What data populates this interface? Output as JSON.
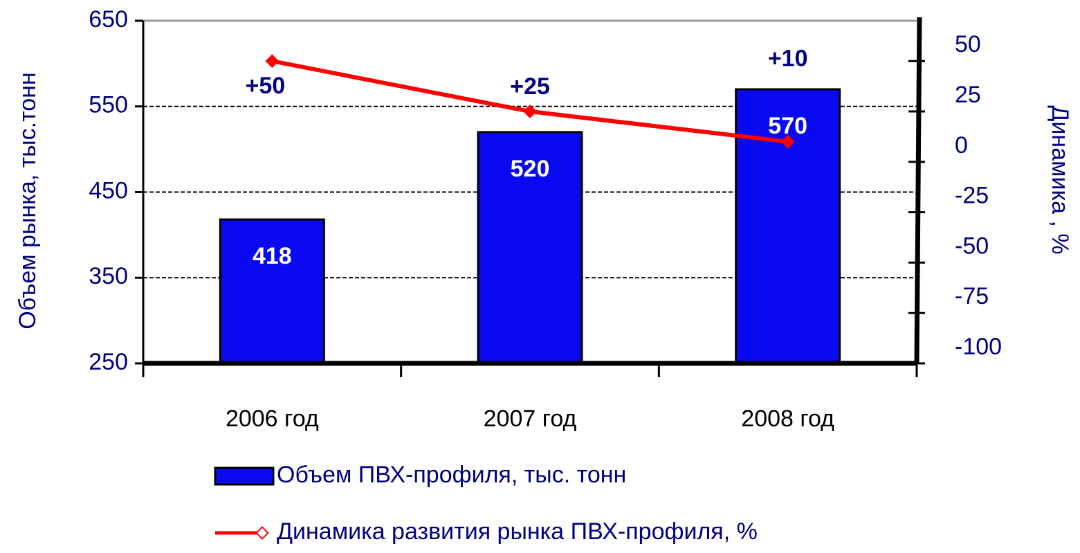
{
  "chart_data": {
    "type": "bar",
    "categories": [
      "2006 год",
      "2007 год",
      "2008 год"
    ],
    "ylabel": "Объем рынка, тыс.тонн",
    "y2label": "Динамика , %",
    "ylim": [
      250,
      650
    ],
    "yticks": [
      250,
      350,
      450,
      550,
      650
    ],
    "y2lim": [
      -100,
      70
    ],
    "y2ticks": [
      -100,
      -75,
      -50,
      -25,
      0,
      25,
      50
    ],
    "grid": true,
    "series": [
      {
        "name": "Объем ПВХ-профиля, тыс. тонн",
        "type": "bar",
        "color": "#0a0af0",
        "values": [
          418,
          520,
          570
        ]
      },
      {
        "name": "Динамика развития рынка ПВХ-профиля, %",
        "type": "line",
        "axis": "y2",
        "color": "#ff0000",
        "values": [
          50,
          25,
          10
        ],
        "value_labels": [
          "+50",
          "+25",
          "+10"
        ]
      }
    ]
  }
}
